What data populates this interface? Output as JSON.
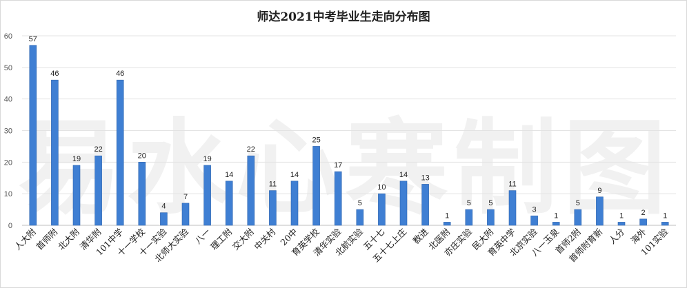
{
  "chart_data": {
    "type": "bar",
    "title": "师达2021中考毕业生走向分布图",
    "xlabel": "",
    "ylabel": "",
    "ylim": [
      0,
      60
    ],
    "yticks": [
      0,
      10,
      20,
      30,
      40,
      50,
      60
    ],
    "grid": true,
    "legend": "none",
    "bar_color": "#3f7fd3",
    "categories": [
      "人大附",
      "首师附",
      "北大附",
      "清华附",
      "101中学",
      "十一学校",
      "十一实验",
      "北师大实验",
      "八一",
      "理工附",
      "交大附",
      "中关村",
      "20中",
      "育英学校",
      "清华实验",
      "北航实验",
      "五十七",
      "五十七上庄",
      "教进",
      "北医附",
      "亦庄实验",
      "民大附",
      "育英中学",
      "北京实验",
      "八一玉泉",
      "首师2附",
      "首师附育新",
      "人分",
      "海外",
      "101实验"
    ],
    "values": [
      57,
      46,
      19,
      22,
      46,
      20,
      4,
      7,
      19,
      14,
      22,
      11,
      14,
      25,
      17,
      5,
      10,
      14,
      13,
      1,
      5,
      5,
      11,
      3,
      1,
      5,
      9,
      1,
      2,
      1
    ]
  },
  "watermark": "易水心寒制图"
}
